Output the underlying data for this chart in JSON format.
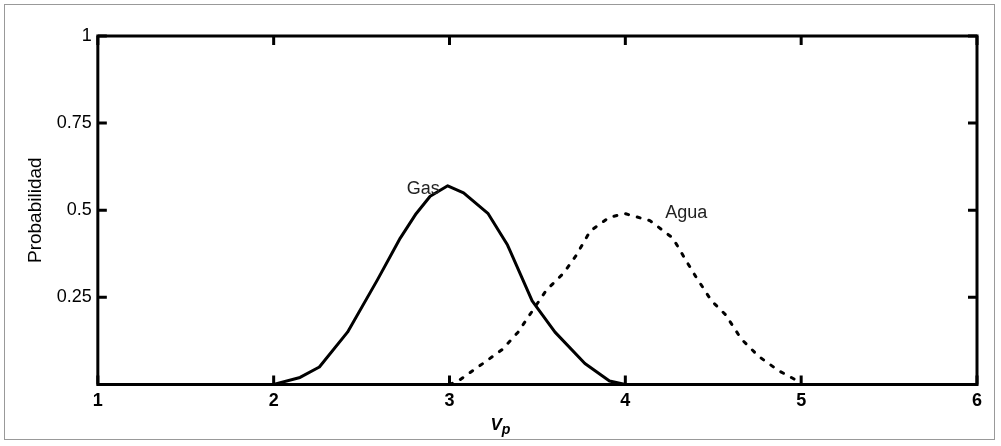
{
  "chart_data": {
    "type": "line",
    "xlabel": "V$_{p}$",
    "ylabel": "Probabilidad",
    "xlim": [
      1,
      6
    ],
    "xticks": [
      1,
      2,
      3,
      4,
      5,
      6
    ],
    "ylim": [
      0,
      1
    ],
    "yticks": [
      0.25,
      0.5,
      0.75,
      1
    ],
    "grid": false,
    "legend": false,
    "marker": "none",
    "series": [
      {
        "name": "Gas",
        "color": "#000000",
        "line_style": "solid",
        "x": [
          1,
          2,
          2.15,
          2.26,
          2.42,
          2.59,
          2.72,
          2.81,
          2.89,
          2.99,
          3.08,
          3.22,
          3.33,
          3.47,
          3.6,
          3.77,
          3.91,
          4,
          6
        ],
        "values": [
          0,
          0,
          0.02,
          0.05,
          0.15,
          0.3,
          0.42,
          0.49,
          0.54,
          0.57,
          0.55,
          0.49,
          0.4,
          0.24,
          0.15,
          0.06,
          0.01,
          0,
          0
        ]
      },
      {
        "name": "Agua",
        "color": "#000000",
        "line_style": "dotted",
        "x": [
          3,
          3.05,
          3.19,
          3.3,
          3.39,
          3.55,
          3.65,
          3.72,
          3.8,
          3.91,
          4,
          4.14,
          4.27,
          4.34,
          4.4,
          4.49,
          4.57,
          4.66,
          4.76,
          4.87,
          4.98,
          5
        ],
        "values": [
          0,
          0.01,
          0.06,
          0.1,
          0.15,
          0.27,
          0.32,
          0.37,
          0.44,
          0.48,
          0.49,
          0.47,
          0.42,
          0.36,
          0.31,
          0.24,
          0.2,
          0.13,
          0.08,
          0.04,
          0.01,
          0
        ]
      }
    ]
  }
}
